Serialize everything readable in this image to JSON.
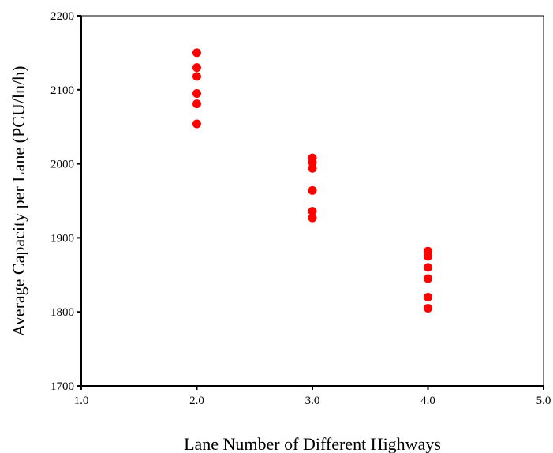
{
  "chart_data": {
    "type": "scatter",
    "title": "",
    "xlabel": "Lane Number of Different Highways",
    "ylabel": "Average Capacity per Lane (PCU/ln/h)",
    "xlim": [
      1.0,
      5.0
    ],
    "ylim": [
      1700,
      2200
    ],
    "x_ticks": [
      1.0,
      2.0,
      3.0,
      4.0,
      5.0
    ],
    "x_tick_labels": [
      "1.0",
      "2.0",
      "3.0",
      "4.0",
      "5.0"
    ],
    "y_ticks": [
      1700,
      1800,
      1900,
      2000,
      2100,
      2200
    ],
    "y_tick_labels": [
      "1700",
      "1800",
      "1900",
      "2000",
      "2100",
      "2200"
    ],
    "grid": false,
    "legend": "none",
    "marker_color": "#ff0000",
    "series": [
      {
        "x": [
          2.0,
          2.0,
          2.0,
          2.0,
          2.0,
          2.0,
          3.0,
          3.0,
          3.0,
          3.0,
          3.0,
          3.0,
          4.0,
          4.0,
          4.0,
          4.0,
          4.0,
          4.0
        ],
        "y": [
          2150,
          2130,
          2118,
          2095,
          2081,
          2054,
          2008,
          2002,
          1994,
          1964,
          1936,
          1927,
          1882,
          1875,
          1860,
          1845,
          1820,
          1805
        ]
      }
    ]
  }
}
